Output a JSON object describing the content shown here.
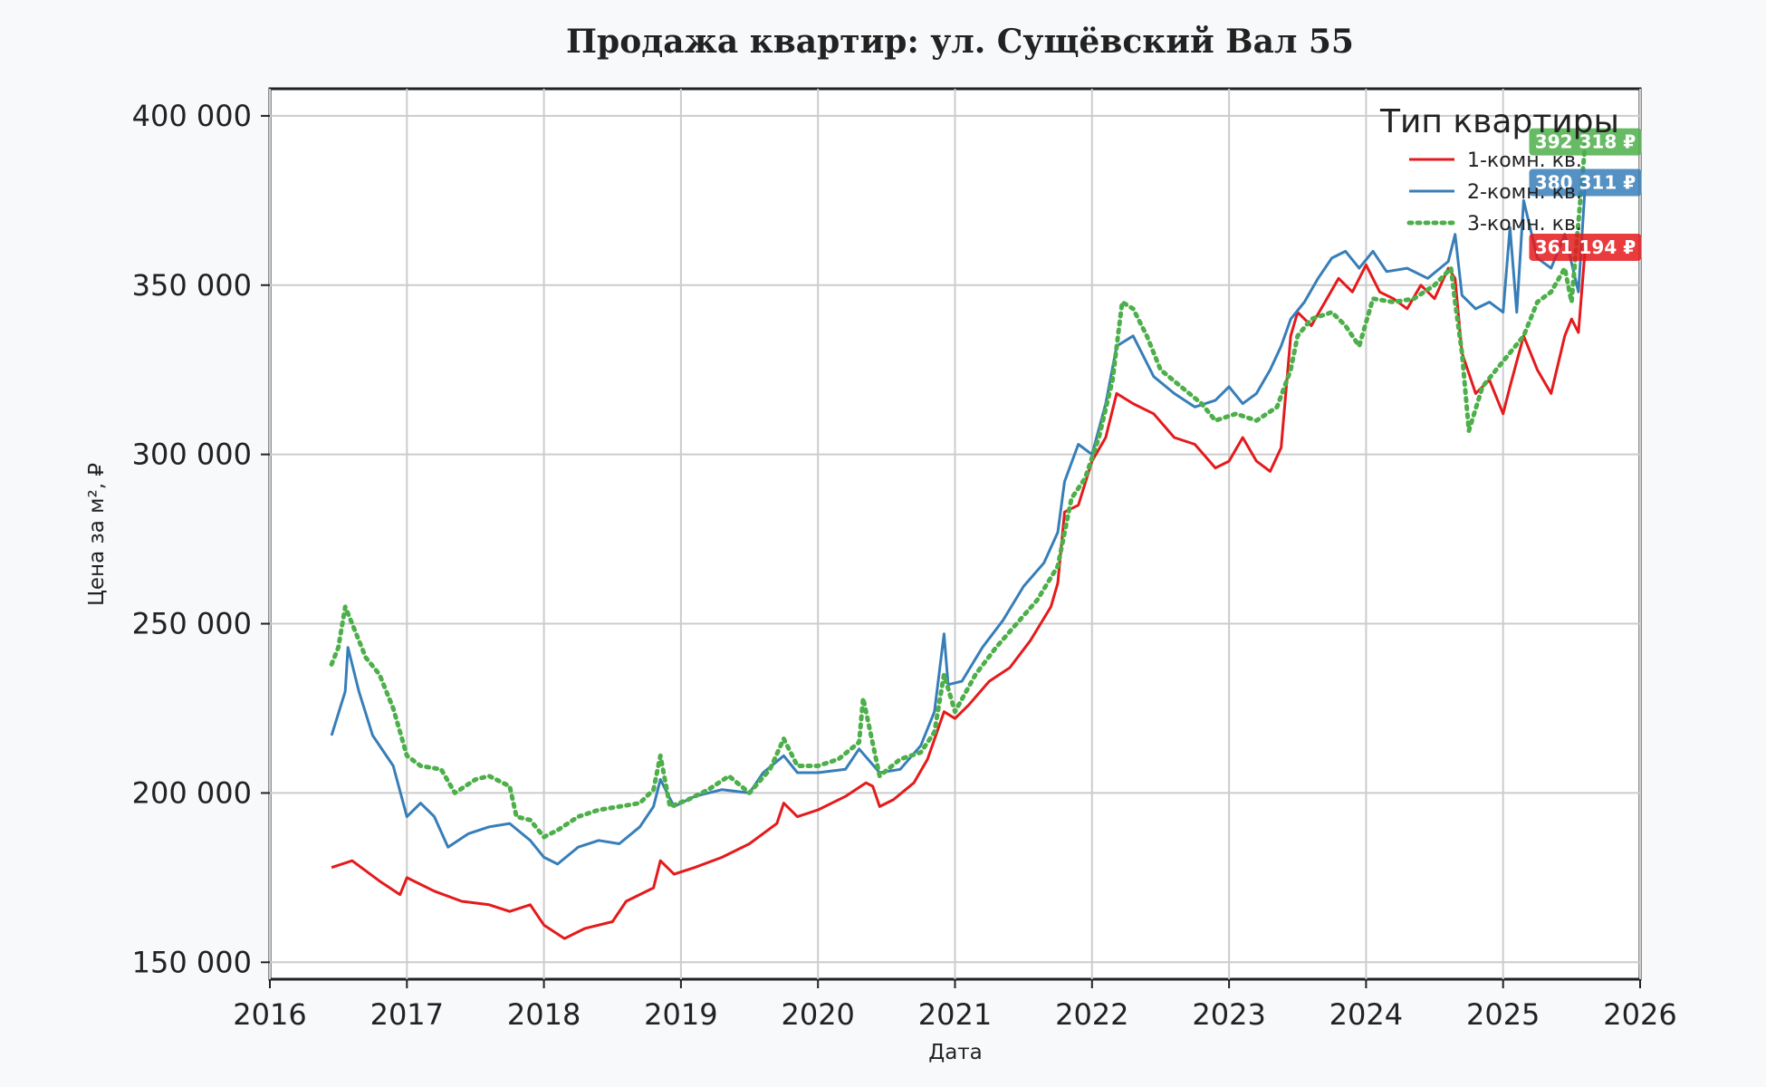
{
  "chart_data": {
    "type": "line",
    "title": "Продажа квартир: ул. Сущёвский Вал 55",
    "xlabel": "Дата",
    "ylabel": "Цена за м², ₽",
    "xlim": [
      2016,
      2026
    ],
    "ylim": [
      145000,
      408000
    ],
    "x_ticks": [
      2016,
      2017,
      2018,
      2019,
      2020,
      2021,
      2022,
      2023,
      2024,
      2025,
      2026
    ],
    "x_tick_labels": [
      "2016",
      "2017",
      "2018",
      "2019",
      "2020",
      "2021",
      "2022",
      "2023",
      "2024",
      "2025",
      "2026"
    ],
    "y_ticks": [
      150000,
      200000,
      250000,
      300000,
      350000,
      400000
    ],
    "y_tick_labels": [
      "150 000",
      "200 000",
      "250 000",
      "300 000",
      "350 000",
      "400 000"
    ],
    "grid": true,
    "legend": {
      "title": "Тип квартиры",
      "position": "top-right"
    },
    "series": [
      {
        "name": "1-комн. кв.",
        "color": "#e41a1c",
        "style": "solid",
        "last_value_label": "361 194 ₽",
        "points": [
          [
            2016.45,
            178000
          ],
          [
            2016.6,
            180000
          ],
          [
            2016.8,
            174000
          ],
          [
            2016.95,
            170000
          ],
          [
            2017.0,
            175000
          ],
          [
            2017.2,
            171000
          ],
          [
            2017.4,
            168000
          ],
          [
            2017.6,
            167000
          ],
          [
            2017.75,
            165000
          ],
          [
            2017.9,
            167000
          ],
          [
            2018.0,
            161000
          ],
          [
            2018.15,
            157000
          ],
          [
            2018.3,
            160000
          ],
          [
            2018.5,
            162000
          ],
          [
            2018.6,
            168000
          ],
          [
            2018.8,
            172000
          ],
          [
            2018.85,
            180000
          ],
          [
            2018.95,
            176000
          ],
          [
            2019.1,
            178000
          ],
          [
            2019.3,
            181000
          ],
          [
            2019.5,
            185000
          ],
          [
            2019.7,
            191000
          ],
          [
            2019.75,
            197000
          ],
          [
            2019.85,
            193000
          ],
          [
            2020.0,
            195000
          ],
          [
            2020.2,
            199000
          ],
          [
            2020.35,
            203000
          ],
          [
            2020.4,
            202000
          ],
          [
            2020.45,
            196000
          ],
          [
            2020.55,
            198000
          ],
          [
            2020.7,
            203000
          ],
          [
            2020.8,
            210000
          ],
          [
            2020.92,
            224000
          ],
          [
            2021.0,
            222000
          ],
          [
            2021.1,
            226000
          ],
          [
            2021.25,
            233000
          ],
          [
            2021.4,
            237000
          ],
          [
            2021.55,
            245000
          ],
          [
            2021.7,
            255000
          ],
          [
            2021.75,
            262000
          ],
          [
            2021.8,
            283000
          ],
          [
            2021.9,
            285000
          ],
          [
            2022.0,
            298000
          ],
          [
            2022.1,
            305000
          ],
          [
            2022.18,
            318000
          ],
          [
            2022.3,
            315000
          ],
          [
            2022.45,
            312000
          ],
          [
            2022.6,
            305000
          ],
          [
            2022.75,
            303000
          ],
          [
            2022.9,
            296000
          ],
          [
            2023.0,
            298000
          ],
          [
            2023.1,
            305000
          ],
          [
            2023.2,
            298000
          ],
          [
            2023.3,
            295000
          ],
          [
            2023.38,
            302000
          ],
          [
            2023.45,
            335000
          ],
          [
            2023.5,
            342000
          ],
          [
            2023.6,
            338000
          ],
          [
            2023.7,
            345000
          ],
          [
            2023.8,
            352000
          ],
          [
            2023.9,
            348000
          ],
          [
            2024.0,
            356000
          ],
          [
            2024.1,
            348000
          ],
          [
            2024.2,
            346000
          ],
          [
            2024.3,
            343000
          ],
          [
            2024.4,
            350000
          ],
          [
            2024.5,
            346000
          ],
          [
            2024.6,
            355000
          ],
          [
            2024.65,
            352000
          ],
          [
            2024.7,
            330000
          ],
          [
            2024.8,
            318000
          ],
          [
            2024.9,
            322000
          ],
          [
            2025.0,
            312000
          ],
          [
            2025.05,
            320000
          ],
          [
            2025.15,
            335000
          ],
          [
            2025.25,
            325000
          ],
          [
            2025.35,
            318000
          ],
          [
            2025.45,
            335000
          ],
          [
            2025.5,
            340000
          ],
          [
            2025.55,
            336000
          ],
          [
            2025.6,
            361194
          ]
        ]
      },
      {
        "name": "2-комн. кв.",
        "color": "#377eb8",
        "style": "solid",
        "last_value_label": "380 311 ₽",
        "points": [
          [
            2016.45,
            217000
          ],
          [
            2016.55,
            230000
          ],
          [
            2016.57,
            243000
          ],
          [
            2016.65,
            230000
          ],
          [
            2016.75,
            217000
          ],
          [
            2016.9,
            208000
          ],
          [
            2017.0,
            193000
          ],
          [
            2017.1,
            197000
          ],
          [
            2017.2,
            193000
          ],
          [
            2017.3,
            184000
          ],
          [
            2017.45,
            188000
          ],
          [
            2017.6,
            190000
          ],
          [
            2017.75,
            191000
          ],
          [
            2017.9,
            186000
          ],
          [
            2018.0,
            181000
          ],
          [
            2018.1,
            179000
          ],
          [
            2018.25,
            184000
          ],
          [
            2018.4,
            186000
          ],
          [
            2018.55,
            185000
          ],
          [
            2018.7,
            190000
          ],
          [
            2018.8,
            196000
          ],
          [
            2018.85,
            204000
          ],
          [
            2018.95,
            196000
          ],
          [
            2019.1,
            199000
          ],
          [
            2019.3,
            201000
          ],
          [
            2019.5,
            200000
          ],
          [
            2019.6,
            206000
          ],
          [
            2019.75,
            211000
          ],
          [
            2019.85,
            206000
          ],
          [
            2020.0,
            206000
          ],
          [
            2020.2,
            207000
          ],
          [
            2020.3,
            213000
          ],
          [
            2020.45,
            206000
          ],
          [
            2020.6,
            207000
          ],
          [
            2020.75,
            214000
          ],
          [
            2020.85,
            224000
          ],
          [
            2020.92,
            247000
          ],
          [
            2020.95,
            232000
          ],
          [
            2021.05,
            233000
          ],
          [
            2021.2,
            243000
          ],
          [
            2021.35,
            251000
          ],
          [
            2021.5,
            261000
          ],
          [
            2021.65,
            268000
          ],
          [
            2021.75,
            277000
          ],
          [
            2021.8,
            292000
          ],
          [
            2021.9,
            303000
          ],
          [
            2022.0,
            300000
          ],
          [
            2022.1,
            315000
          ],
          [
            2022.18,
            332000
          ],
          [
            2022.3,
            335000
          ],
          [
            2022.45,
            323000
          ],
          [
            2022.6,
            318000
          ],
          [
            2022.75,
            314000
          ],
          [
            2022.9,
            316000
          ],
          [
            2023.0,
            320000
          ],
          [
            2023.1,
            315000
          ],
          [
            2023.2,
            318000
          ],
          [
            2023.3,
            325000
          ],
          [
            2023.38,
            332000
          ],
          [
            2023.45,
            340000
          ],
          [
            2023.55,
            345000
          ],
          [
            2023.65,
            352000
          ],
          [
            2023.75,
            358000
          ],
          [
            2023.85,
            360000
          ],
          [
            2023.95,
            355000
          ],
          [
            2024.05,
            360000
          ],
          [
            2024.15,
            354000
          ],
          [
            2024.3,
            355000
          ],
          [
            2024.45,
            352000
          ],
          [
            2024.6,
            357000
          ],
          [
            2024.65,
            365000
          ],
          [
            2024.7,
            347000
          ],
          [
            2024.8,
            343000
          ],
          [
            2024.9,
            345000
          ],
          [
            2025.0,
            342000
          ],
          [
            2025.05,
            367000
          ],
          [
            2025.1,
            342000
          ],
          [
            2025.15,
            375000
          ],
          [
            2025.25,
            358000
          ],
          [
            2025.35,
            355000
          ],
          [
            2025.45,
            365000
          ],
          [
            2025.55,
            348000
          ],
          [
            2025.6,
            380311
          ]
        ]
      },
      {
        "name": "3-комн. кв.",
        "color": "#4daf4a",
        "style": "dotted",
        "last_value_label": "392 318 ₽",
        "points": [
          [
            2016.45,
            238000
          ],
          [
            2016.5,
            243000
          ],
          [
            2016.55,
            255000
          ],
          [
            2016.6,
            250000
          ],
          [
            2016.7,
            240000
          ],
          [
            2016.8,
            235000
          ],
          [
            2016.9,
            225000
          ],
          [
            2017.0,
            211000
          ],
          [
            2017.1,
            208000
          ],
          [
            2017.25,
            207000
          ],
          [
            2017.35,
            200000
          ],
          [
            2017.5,
            204000
          ],
          [
            2017.6,
            205000
          ],
          [
            2017.75,
            202000
          ],
          [
            2017.8,
            193000
          ],
          [
            2017.9,
            192000
          ],
          [
            2018.0,
            187000
          ],
          [
            2018.1,
            189000
          ],
          [
            2018.25,
            193000
          ],
          [
            2018.4,
            195000
          ],
          [
            2018.55,
            196000
          ],
          [
            2018.7,
            197000
          ],
          [
            2018.8,
            201000
          ],
          [
            2018.85,
            211000
          ],
          [
            2018.92,
            196000
          ],
          [
            2019.05,
            198000
          ],
          [
            2019.2,
            201000
          ],
          [
            2019.35,
            205000
          ],
          [
            2019.5,
            200000
          ],
          [
            2019.65,
            207000
          ],
          [
            2019.75,
            216000
          ],
          [
            2019.85,
            208000
          ],
          [
            2020.0,
            208000
          ],
          [
            2020.15,
            210000
          ],
          [
            2020.3,
            215000
          ],
          [
            2020.33,
            228000
          ],
          [
            2020.45,
            205000
          ],
          [
            2020.6,
            210000
          ],
          [
            2020.75,
            212000
          ],
          [
            2020.85,
            218000
          ],
          [
            2020.92,
            235000
          ],
          [
            2021.0,
            224000
          ],
          [
            2021.15,
            235000
          ],
          [
            2021.3,
            243000
          ],
          [
            2021.45,
            250000
          ],
          [
            2021.6,
            257000
          ],
          [
            2021.75,
            267000
          ],
          [
            2021.85,
            287000
          ],
          [
            2021.95,
            293000
          ],
          [
            2022.05,
            305000
          ],
          [
            2022.15,
            322000
          ],
          [
            2022.22,
            345000
          ],
          [
            2022.3,
            343000
          ],
          [
            2022.4,
            335000
          ],
          [
            2022.5,
            325000
          ],
          [
            2022.65,
            320000
          ],
          [
            2022.8,
            315000
          ],
          [
            2022.9,
            310000
          ],
          [
            2023.05,
            312000
          ],
          [
            2023.2,
            310000
          ],
          [
            2023.35,
            314000
          ],
          [
            2023.45,
            325000
          ],
          [
            2023.5,
            335000
          ],
          [
            2023.6,
            340000
          ],
          [
            2023.75,
            342000
          ],
          [
            2023.85,
            338000
          ],
          [
            2023.95,
            332000
          ],
          [
            2024.05,
            346000
          ],
          [
            2024.2,
            345000
          ],
          [
            2024.35,
            346000
          ],
          [
            2024.5,
            350000
          ],
          [
            2024.62,
            355000
          ],
          [
            2024.65,
            345000
          ],
          [
            2024.7,
            330000
          ],
          [
            2024.75,
            307000
          ],
          [
            2024.85,
            320000
          ],
          [
            2024.95,
            325000
          ],
          [
            2025.05,
            330000
          ],
          [
            2025.15,
            335000
          ],
          [
            2025.25,
            345000
          ],
          [
            2025.35,
            348000
          ],
          [
            2025.45,
            355000
          ],
          [
            2025.5,
            345000
          ],
          [
            2025.6,
            392318
          ]
        ]
      }
    ]
  }
}
